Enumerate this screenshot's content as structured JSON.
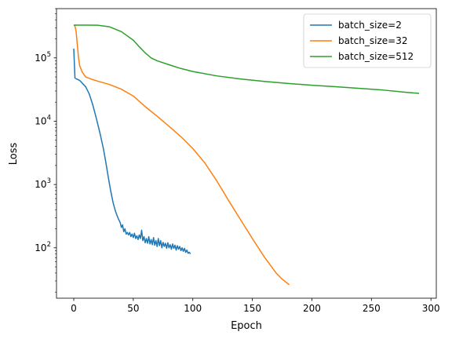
{
  "chart_data": {
    "type": "line",
    "xlabel": "Epoch",
    "ylabel": "Loss",
    "xlim": [
      -14.5,
      304.5
    ],
    "ylim": [
      16,
      600000
    ],
    "y_scale": "log",
    "grid": false,
    "legend_position": "top-right",
    "x_ticks": [
      {
        "value": 0,
        "label": "0"
      },
      {
        "value": 50,
        "label": "50"
      },
      {
        "value": 100,
        "label": "100"
      },
      {
        "value": 150,
        "label": "150"
      },
      {
        "value": 200,
        "label": "200"
      },
      {
        "value": 250,
        "label": "250"
      },
      {
        "value": 300,
        "label": "300"
      }
    ],
    "y_ticks": [
      {
        "value": 100,
        "label_base": "10",
        "label_exp": "2"
      },
      {
        "value": 1000,
        "label_base": "10",
        "label_exp": "3"
      },
      {
        "value": 10000,
        "label_base": "10",
        "label_exp": "4"
      },
      {
        "value": 100000,
        "label_base": "10",
        "label_exp": "5"
      }
    ],
    "series": [
      {
        "name": "batch_size=2",
        "color": "#1f77b4",
        "points": [
          [
            0,
            140000
          ],
          [
            1,
            48000
          ],
          [
            5,
            44000
          ],
          [
            10,
            35000
          ],
          [
            13,
            27000
          ],
          [
            16,
            18000
          ],
          [
            19,
            11000
          ],
          [
            22,
            6500
          ],
          [
            25,
            3600
          ],
          [
            27,
            2200
          ],
          [
            29,
            1300
          ],
          [
            31,
            800
          ],
          [
            33,
            520
          ],
          [
            35,
            380
          ],
          [
            37,
            300
          ],
          [
            39,
            250
          ],
          [
            40,
            210
          ],
          [
            41,
            230
          ],
          [
            42,
            180
          ],
          [
            43,
            200
          ],
          [
            44,
            165
          ],
          [
            45,
            175
          ],
          [
            46,
            160
          ],
          [
            47,
            175
          ],
          [
            48,
            150
          ],
          [
            49,
            165
          ],
          [
            50,
            145
          ],
          [
            51,
            170
          ],
          [
            52,
            140
          ],
          [
            53,
            155
          ],
          [
            54,
            135
          ],
          [
            55,
            160
          ],
          [
            56,
            140
          ],
          [
            57,
            190
          ],
          [
            58,
            130
          ],
          [
            59,
            150
          ],
          [
            60,
            120
          ],
          [
            61,
            140
          ],
          [
            62,
            118
          ],
          [
            63,
            150
          ],
          [
            64,
            115
          ],
          [
            65,
            135
          ],
          [
            66,
            112
          ],
          [
            67,
            145
          ],
          [
            68,
            110
          ],
          [
            69,
            130
          ],
          [
            70,
            105
          ],
          [
            71,
            140
          ],
          [
            72,
            108
          ],
          [
            73,
            130
          ],
          [
            74,
            100
          ],
          [
            75,
            122
          ],
          [
            76,
            105
          ],
          [
            77,
            118
          ],
          [
            78,
            98
          ],
          [
            79,
            120
          ],
          [
            80,
            100
          ],
          [
            81,
            112
          ],
          [
            82,
            95
          ],
          [
            83,
            115
          ],
          [
            84,
            98
          ],
          [
            85,
            110
          ],
          [
            86,
            92
          ],
          [
            87,
            108
          ],
          [
            88,
            95
          ],
          [
            89,
            105
          ],
          [
            90,
            90
          ],
          [
            91,
            100
          ],
          [
            92,
            88
          ],
          [
            93,
            98
          ],
          [
            94,
            85
          ],
          [
            95,
            92
          ],
          [
            96,
            82
          ],
          [
            97,
            85
          ],
          [
            98,
            80
          ]
        ]
      },
      {
        "name": "batch_size=32",
        "color": "#ff7f0e",
        "points": [
          [
            0,
            330000
          ],
          [
            1,
            320000
          ],
          [
            2,
            260000
          ],
          [
            3,
            160000
          ],
          [
            4,
            100000
          ],
          [
            5,
            75000
          ],
          [
            7,
            60000
          ],
          [
            10,
            50000
          ],
          [
            15,
            46000
          ],
          [
            20,
            43000
          ],
          [
            30,
            38000
          ],
          [
            40,
            32000
          ],
          [
            50,
            25000
          ],
          [
            60,
            17000
          ],
          [
            70,
            12000
          ],
          [
            80,
            8300
          ],
          [
            90,
            5700
          ],
          [
            100,
            3700
          ],
          [
            110,
            2200
          ],
          [
            120,
            1150
          ],
          [
            130,
            560
          ],
          [
            140,
            280
          ],
          [
            150,
            140
          ],
          [
            160,
            72
          ],
          [
            170,
            40
          ],
          [
            175,
            32
          ],
          [
            180,
            27
          ],
          [
            181,
            26
          ]
        ]
      },
      {
        "name": "batch_size=512",
        "color": "#2ca02c",
        "points": [
          [
            0,
            330000
          ],
          [
            10,
            330000
          ],
          [
            20,
            328000
          ],
          [
            30,
            310000
          ],
          [
            40,
            260000
          ],
          [
            50,
            190000
          ],
          [
            55,
            150000
          ],
          [
            60,
            120000
          ],
          [
            65,
            100000
          ],
          [
            70,
            90000
          ],
          [
            80,
            78000
          ],
          [
            90,
            68000
          ],
          [
            100,
            61000
          ],
          [
            120,
            52000
          ],
          [
            140,
            46500
          ],
          [
            160,
            42500
          ],
          [
            180,
            39500
          ],
          [
            200,
            37000
          ],
          [
            220,
            35000
          ],
          [
            240,
            33000
          ],
          [
            260,
            31000
          ],
          [
            280,
            28500
          ],
          [
            290,
            27500
          ]
        ]
      }
    ]
  }
}
